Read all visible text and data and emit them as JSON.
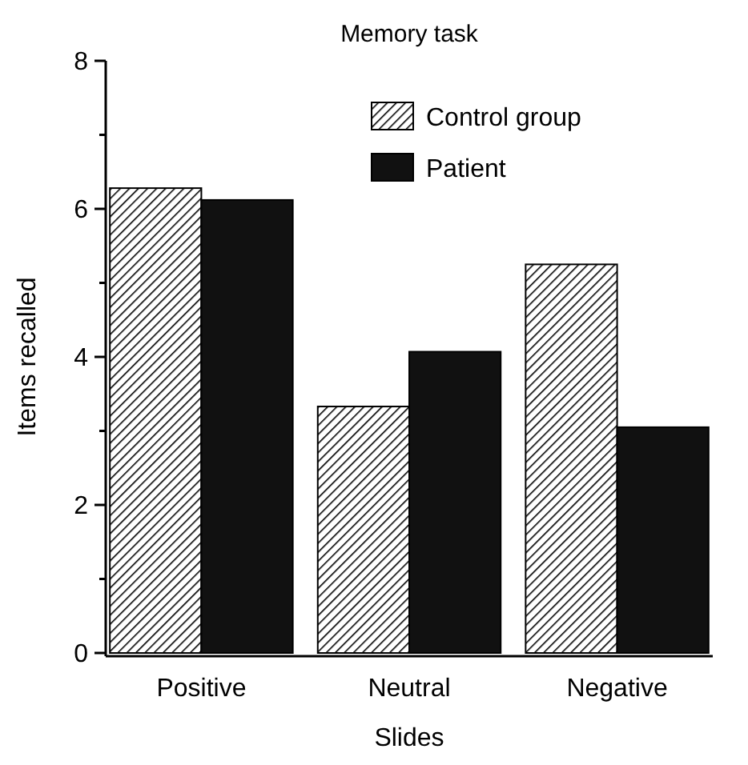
{
  "chart_data": {
    "type": "bar",
    "title": "Memory task",
    "xlabel": "Slides",
    "ylabel": "Items recalled",
    "categories": [
      "Positive",
      "Neutral",
      "Negative"
    ],
    "series": [
      {
        "name": "Control group",
        "color": "#000000",
        "values": [
          6.28,
          3.33,
          5.25
        ]
      },
      {
        "name": "Patient",
        "color": "#111111",
        "values": [
          6.12,
          4.07,
          3.05
        ]
      }
    ],
    "ylim": [
      0,
      8
    ],
    "yticks": [
      0,
      {
        "value": 1,
        "label": null
      },
      2,
      {
        "value": 3,
        "label": null
      },
      4,
      {
        "value": 5,
        "label": null
      },
      6,
      {
        "value": 7,
        "label": null
      },
      8
    ],
    "grid": false,
    "legend": "top right"
  }
}
